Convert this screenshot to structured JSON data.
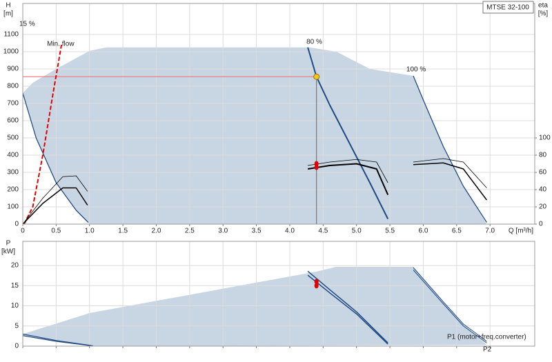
{
  "chart_data": [
    {
      "type": "line",
      "model": "MTSE 32-100",
      "y_title": [
        "H",
        "[m]"
      ],
      "y2_title": [
        "eta",
        "[%]"
      ],
      "x_title": "Q [m³/h]",
      "xlim": [
        0,
        7.67
      ],
      "xticks": [
        0,
        0.5,
        {
          "value": 1,
          "label": "1.0"
        },
        1.5,
        {
          "value": 2,
          "label": "2.0"
        },
        2.5,
        {
          "value": 3,
          "label": "3.0"
        },
        3.5,
        {
          "value": 4,
          "label": "4.0"
        },
        4.5,
        {
          "value": 5,
          "label": "5.0"
        },
        5.5,
        {
          "value": 6,
          "label": "6.0"
        },
        6.5,
        {
          "value": 7,
          "label": "7.0"
        }
      ],
      "ylim": [
        0,
        1280
      ],
      "yticks": [
        0,
        100,
        200,
        300,
        400,
        500,
        600,
        700,
        800,
        900,
        1000,
        1100
      ],
      "y2lim": [
        0,
        256
      ],
      "y2ticks": [
        0,
        20,
        40,
        60,
        80,
        100
      ],
      "grid": true,
      "area": {
        "color": "#c8d6e4",
        "x": [
          0,
          0.15,
          0.5,
          1.0,
          1.25,
          4.3,
          4.7,
          5.2,
          5.85,
          6.0,
          6.3,
          6.6,
          6.95,
          1.0,
          0.8,
          0.5,
          0.2,
          0
        ],
        "values": [
          760,
          820,
          900,
          1005,
          1025,
          1025,
          1000,
          900,
          860,
          720,
          450,
          220,
          0,
          0,
          80,
          240,
          500,
          760
        ]
      },
      "series": [
        {
          "name": "80 %",
          "color": "#1f4a82",
          "width": 2,
          "x": [
            4.27,
            4.4,
            4.6,
            4.8,
            5.0,
            5.2,
            5.47
          ],
          "values": [
            1025,
            855,
            690,
            540,
            390,
            240,
            30
          ]
        },
        {
          "name": "100 %",
          "color": "#1f4a82",
          "width": 1.3,
          "x": [
            5.85,
            6.0,
            6.3,
            6.6,
            6.95
          ],
          "values": [
            860,
            720,
            450,
            220,
            10
          ]
        },
        {
          "name": "15 %",
          "color": "#1f4a82",
          "width": 1.3,
          "x": [
            0,
            0.2,
            0.5,
            0.8,
            0.98
          ],
          "values": [
            760,
            500,
            240,
            80,
            10
          ]
        },
        {
          "name": "Min. flow",
          "color": "#e00000",
          "width": 2,
          "dashed": true,
          "x": [
            0.02,
            0.15,
            0.3,
            0.45,
            0.58
          ],
          "values": [
            0,
            100,
            400,
            750,
            1040
          ]
        },
        {
          "axis": "y2",
          "color": "#000000",
          "width": 0.8,
          "x": [
            4.27,
            4.6,
            5.0,
            5.3,
            5.47
          ],
          "values": [
            68,
            72,
            75,
            72,
            48
          ]
        },
        {
          "axis": "y2",
          "color": "#000000",
          "width": 2,
          "x": [
            4.27,
            4.6,
            5.0,
            5.3,
            5.47
          ],
          "values": [
            64,
            68,
            70,
            64,
            34
          ]
        },
        {
          "axis": "y2",
          "color": "#000000",
          "width": 0.8,
          "x": [
            5.85,
            6.3,
            6.6,
            6.95
          ],
          "values": [
            72,
            76,
            72,
            42
          ]
        },
        {
          "axis": "y2",
          "color": "#000000",
          "width": 1.5,
          "x": [
            5.85,
            6.3,
            6.6,
            6.95
          ],
          "values": [
            69,
            71,
            64,
            28
          ]
        },
        {
          "axis": "y2",
          "color": "#000000",
          "width": 0.8,
          "x": [
            0,
            0.3,
            0.6,
            0.8,
            0.97
          ],
          "values": [
            0,
            30,
            55,
            56,
            38
          ]
        },
        {
          "axis": "y2",
          "color": "#000000",
          "width": 1.5,
          "x": [
            0,
            0.3,
            0.6,
            0.8,
            0.97
          ],
          "values": [
            0,
            24,
            42,
            42,
            22
          ]
        }
      ],
      "duty_points": {
        "axis": "y2",
        "color": "#e00000",
        "x": [
          4.4,
          4.4
        ],
        "values": [
          70,
          66
        ]
      },
      "operating_point": {
        "x": 4.4,
        "value": 855,
        "color": "#f5c518",
        "line_color": "#f08080"
      }
    },
    {
      "type": "line",
      "y_title": [
        "P",
        "[kW]"
      ],
      "xlim": [
        0,
        7.67
      ],
      "xticks": [
        0,
        0.5,
        1,
        1.5,
        2,
        2.5,
        3,
        3.5,
        4,
        4.5,
        5,
        5.5,
        6,
        6.5,
        7
      ],
      "show_xtick_labels": false,
      "ylim": [
        0,
        26
      ],
      "yticks": [
        0,
        5,
        10,
        15,
        20
      ],
      "grid": true,
      "annotations": [
        "P1 (motor+freq.converter)",
        "P2"
      ],
      "annotation_color": "#2255aa",
      "area": {
        "color": "#c8d6e4",
        "x": [
          0,
          1.0,
          4.4,
          4.7,
          5.85,
          6.3,
          6.6,
          6.95,
          1.05,
          0.5,
          0
        ],
        "values": [
          3,
          8.2,
          18.5,
          19.7,
          19.7,
          11,
          5.5,
          0.3,
          0,
          1.2,
          2.6
        ]
      },
      "series": [
        {
          "color": "#1f4a82",
          "width": 1.5,
          "x": [
            4.27,
            4.6,
            5.0,
            5.47
          ],
          "values": [
            18.6,
            14,
            8.5,
            0.8
          ]
        },
        {
          "color": "#1f4a82",
          "width": 1.5,
          "x": [
            4.27,
            4.6,
            5.0,
            5.47
          ],
          "values": [
            17.6,
            13.2,
            8,
            0.5
          ]
        },
        {
          "color": "#1f4a82",
          "width": 1,
          "x": [
            5.85,
            6.3,
            6.6,
            6.95
          ],
          "values": [
            19.5,
            11,
            5.5,
            1.2
          ]
        },
        {
          "color": "#1f4a82",
          "width": 1,
          "x": [
            5.85,
            6.3,
            6.6,
            6.95
          ],
          "values": [
            18.9,
            10.5,
            5,
            0.8
          ]
        },
        {
          "color": "#1f4a82",
          "width": 1.2,
          "x": [
            0,
            0.5,
            1.05
          ],
          "values": [
            3,
            1.4,
            0.1
          ]
        },
        {
          "color": "#1f4a82",
          "width": 1.2,
          "x": [
            0,
            0.5,
            1.05
          ],
          "values": [
            2.6,
            1.2,
            0.05
          ]
        }
      ],
      "duty_points": {
        "color": "#e00000",
        "x": [
          4.4,
          4.4
        ],
        "values": [
          16,
          15
        ]
      }
    }
  ]
}
